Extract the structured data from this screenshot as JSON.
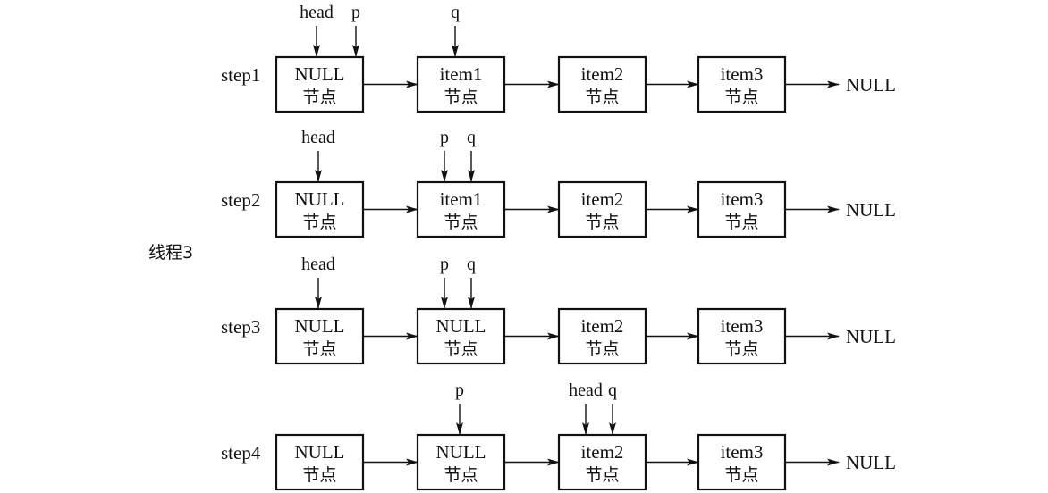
{
  "diagram": {
    "side_label": "线程3",
    "end_label": "NULL",
    "node_suffix": "节点",
    "colors": {
      "stroke": "#111111",
      "background": "#ffffff"
    },
    "steps": [
      {
        "label": "step1",
        "nodes": [
          "NULL",
          "item1",
          "item2",
          "item3"
        ],
        "pointers": [
          {
            "name": "head",
            "node": 0,
            "slot": "left"
          },
          {
            "name": "p",
            "node": 0,
            "slot": "right"
          },
          {
            "name": "q",
            "node": 1,
            "slot": "center"
          }
        ]
      },
      {
        "label": "step2",
        "nodes": [
          "NULL",
          "item1",
          "item2",
          "item3"
        ],
        "pointers": [
          {
            "name": "head",
            "node": 0,
            "slot": "center"
          },
          {
            "name": "p",
            "node": 1,
            "slot": "left"
          },
          {
            "name": "q",
            "node": 1,
            "slot": "right"
          }
        ]
      },
      {
        "label": "step3",
        "nodes": [
          "NULL",
          "NULL",
          "item2",
          "item3"
        ],
        "pointers": [
          {
            "name": "head",
            "node": 0,
            "slot": "center"
          },
          {
            "name": "p",
            "node": 1,
            "slot": "left"
          },
          {
            "name": "q",
            "node": 1,
            "slot": "right"
          }
        ]
      },
      {
        "label": "step4",
        "nodes": [
          "NULL",
          "NULL",
          "item2",
          "item3"
        ],
        "pointers": [
          {
            "name": "p",
            "node": 1,
            "slot": "center"
          },
          {
            "name": "head",
            "node": 2,
            "slot": "left"
          },
          {
            "name": "q",
            "node": 2,
            "slot": "right"
          }
        ]
      }
    ]
  }
}
